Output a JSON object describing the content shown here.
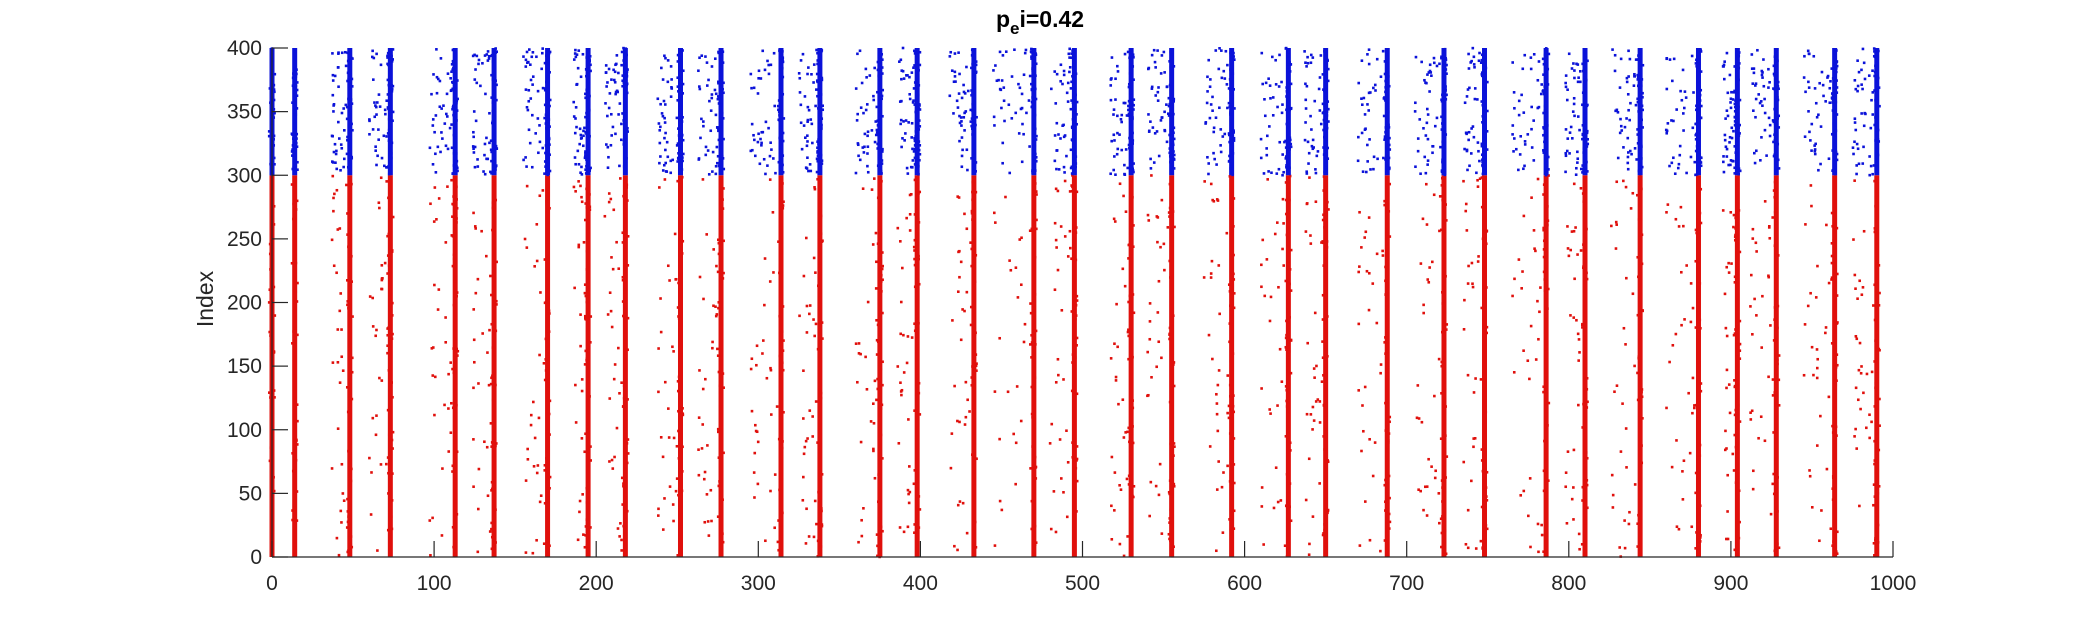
{
  "chart_data": {
    "type": "scatter",
    "title_main": "p",
    "title_sub": "e",
    "title_rest": "i=0.42",
    "xlabel": "",
    "ylabel": "Index",
    "xlim": [
      0,
      1000
    ],
    "ylim": [
      0,
      400
    ],
    "xticks": [
      0,
      100,
      200,
      300,
      400,
      500,
      600,
      700,
      800,
      900,
      1000
    ],
    "yticks": [
      0,
      50,
      100,
      150,
      200,
      250,
      300,
      350,
      400
    ],
    "grid": false,
    "colors": {
      "excitatory": "#e0100c",
      "inhibitory": "#0b12d9",
      "axis": "#262626"
    },
    "groups": [
      {
        "color_key": "excitatory",
        "index_range": [
          0,
          300
        ]
      },
      {
        "color_key": "inhibitory",
        "index_range": [
          300,
          400
        ]
      }
    ],
    "burst_times": [
      0,
      14,
      48,
      73,
      113,
      137,
      170,
      195,
      218,
      252,
      277,
      314,
      338,
      375,
      398,
      433,
      470,
      495,
      530,
      555,
      592,
      627,
      650,
      688,
      723,
      748,
      786,
      810,
      844,
      880,
      904,
      928,
      964,
      990
    ],
    "sparse_windows": [
      [
        37,
        48
      ],
      [
        60,
        73
      ],
      [
        96,
        112
      ],
      [
        124,
        136
      ],
      [
        155,
        169
      ],
      [
        186,
        195
      ],
      [
        205,
        217
      ],
      [
        238,
        251
      ],
      [
        263,
        276
      ],
      [
        295,
        313
      ],
      [
        325,
        337
      ],
      [
        360,
        374
      ],
      [
        386,
        397
      ],
      [
        418,
        432
      ],
      [
        445,
        469
      ],
      [
        480,
        494
      ],
      [
        517,
        529
      ],
      [
        540,
        554
      ],
      [
        575,
        591
      ],
      [
        610,
        626
      ],
      [
        637,
        649
      ],
      [
        670,
        687
      ],
      [
        705,
        722
      ],
      [
        735,
        747
      ],
      [
        765,
        785
      ],
      [
        798,
        809
      ],
      [
        826,
        843
      ],
      [
        860,
        879
      ],
      [
        895,
        903
      ],
      [
        912,
        927
      ],
      [
        945,
        963
      ],
      [
        975,
        989
      ]
    ]
  }
}
